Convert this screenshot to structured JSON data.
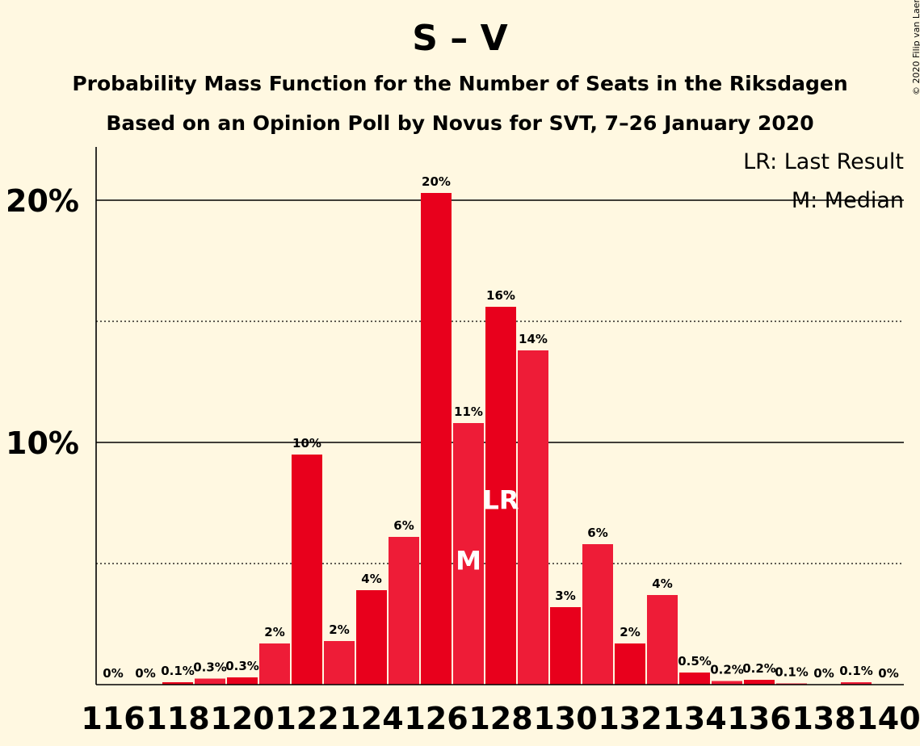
{
  "chart_data": {
    "type": "bar",
    "title": "S – V",
    "subtitle": "Probability Mass Function for the Number of Seats in the Riksdagen",
    "subtitle2": "Based on an Opinion Poll by Novus for SVT, 7–26 January 2020",
    "copyright": "© 2020 Filip van Laenen",
    "legend": [
      {
        "key": "LR",
        "text": "LR: Last Result"
      },
      {
        "key": "M",
        "text": "M: Median"
      }
    ],
    "x": [
      116,
      117,
      118,
      119,
      120,
      121,
      122,
      123,
      124,
      125,
      126,
      127,
      128,
      129,
      130,
      131,
      132,
      133,
      134,
      135,
      136,
      137,
      138,
      139,
      140
    ],
    "values": [
      0,
      0,
      0.1,
      0.25,
      0.3,
      1.7,
      9.5,
      1.8,
      3.9,
      6.1,
      20.3,
      10.8,
      15.6,
      13.8,
      3.2,
      5.8,
      1.7,
      3.7,
      0.5,
      0.15,
      0.2,
      0.05,
      0,
      0.1,
      0
    ],
    "data_labels": [
      "0%",
      "0%",
      "0.1%",
      "0.3%",
      "0.3%",
      "2%",
      "10%",
      "2%",
      "4%",
      "6%",
      "20%",
      "11%",
      "16%",
      "14%",
      "3%",
      "6%",
      "2%",
      "4%",
      "0.5%",
      "0.2%",
      "0.2%",
      "0.1%",
      "0%",
      "0.1%",
      "0%"
    ],
    "x_tick_labels": [
      "116",
      "118",
      "120",
      "122",
      "124",
      "126",
      "128",
      "130",
      "132",
      "134",
      "136",
      "138",
      "140"
    ],
    "y_tick_labels": [
      "10%",
      "20%"
    ],
    "ylim": [
      0,
      22
    ],
    "median_seat": 127,
    "median_marker": "M",
    "last_result_seat": 128,
    "last_result_marker": "LR",
    "colors": {
      "even": "#e8001c",
      "odd": "#ee1c37",
      "background": "#fff8e1"
    }
  }
}
